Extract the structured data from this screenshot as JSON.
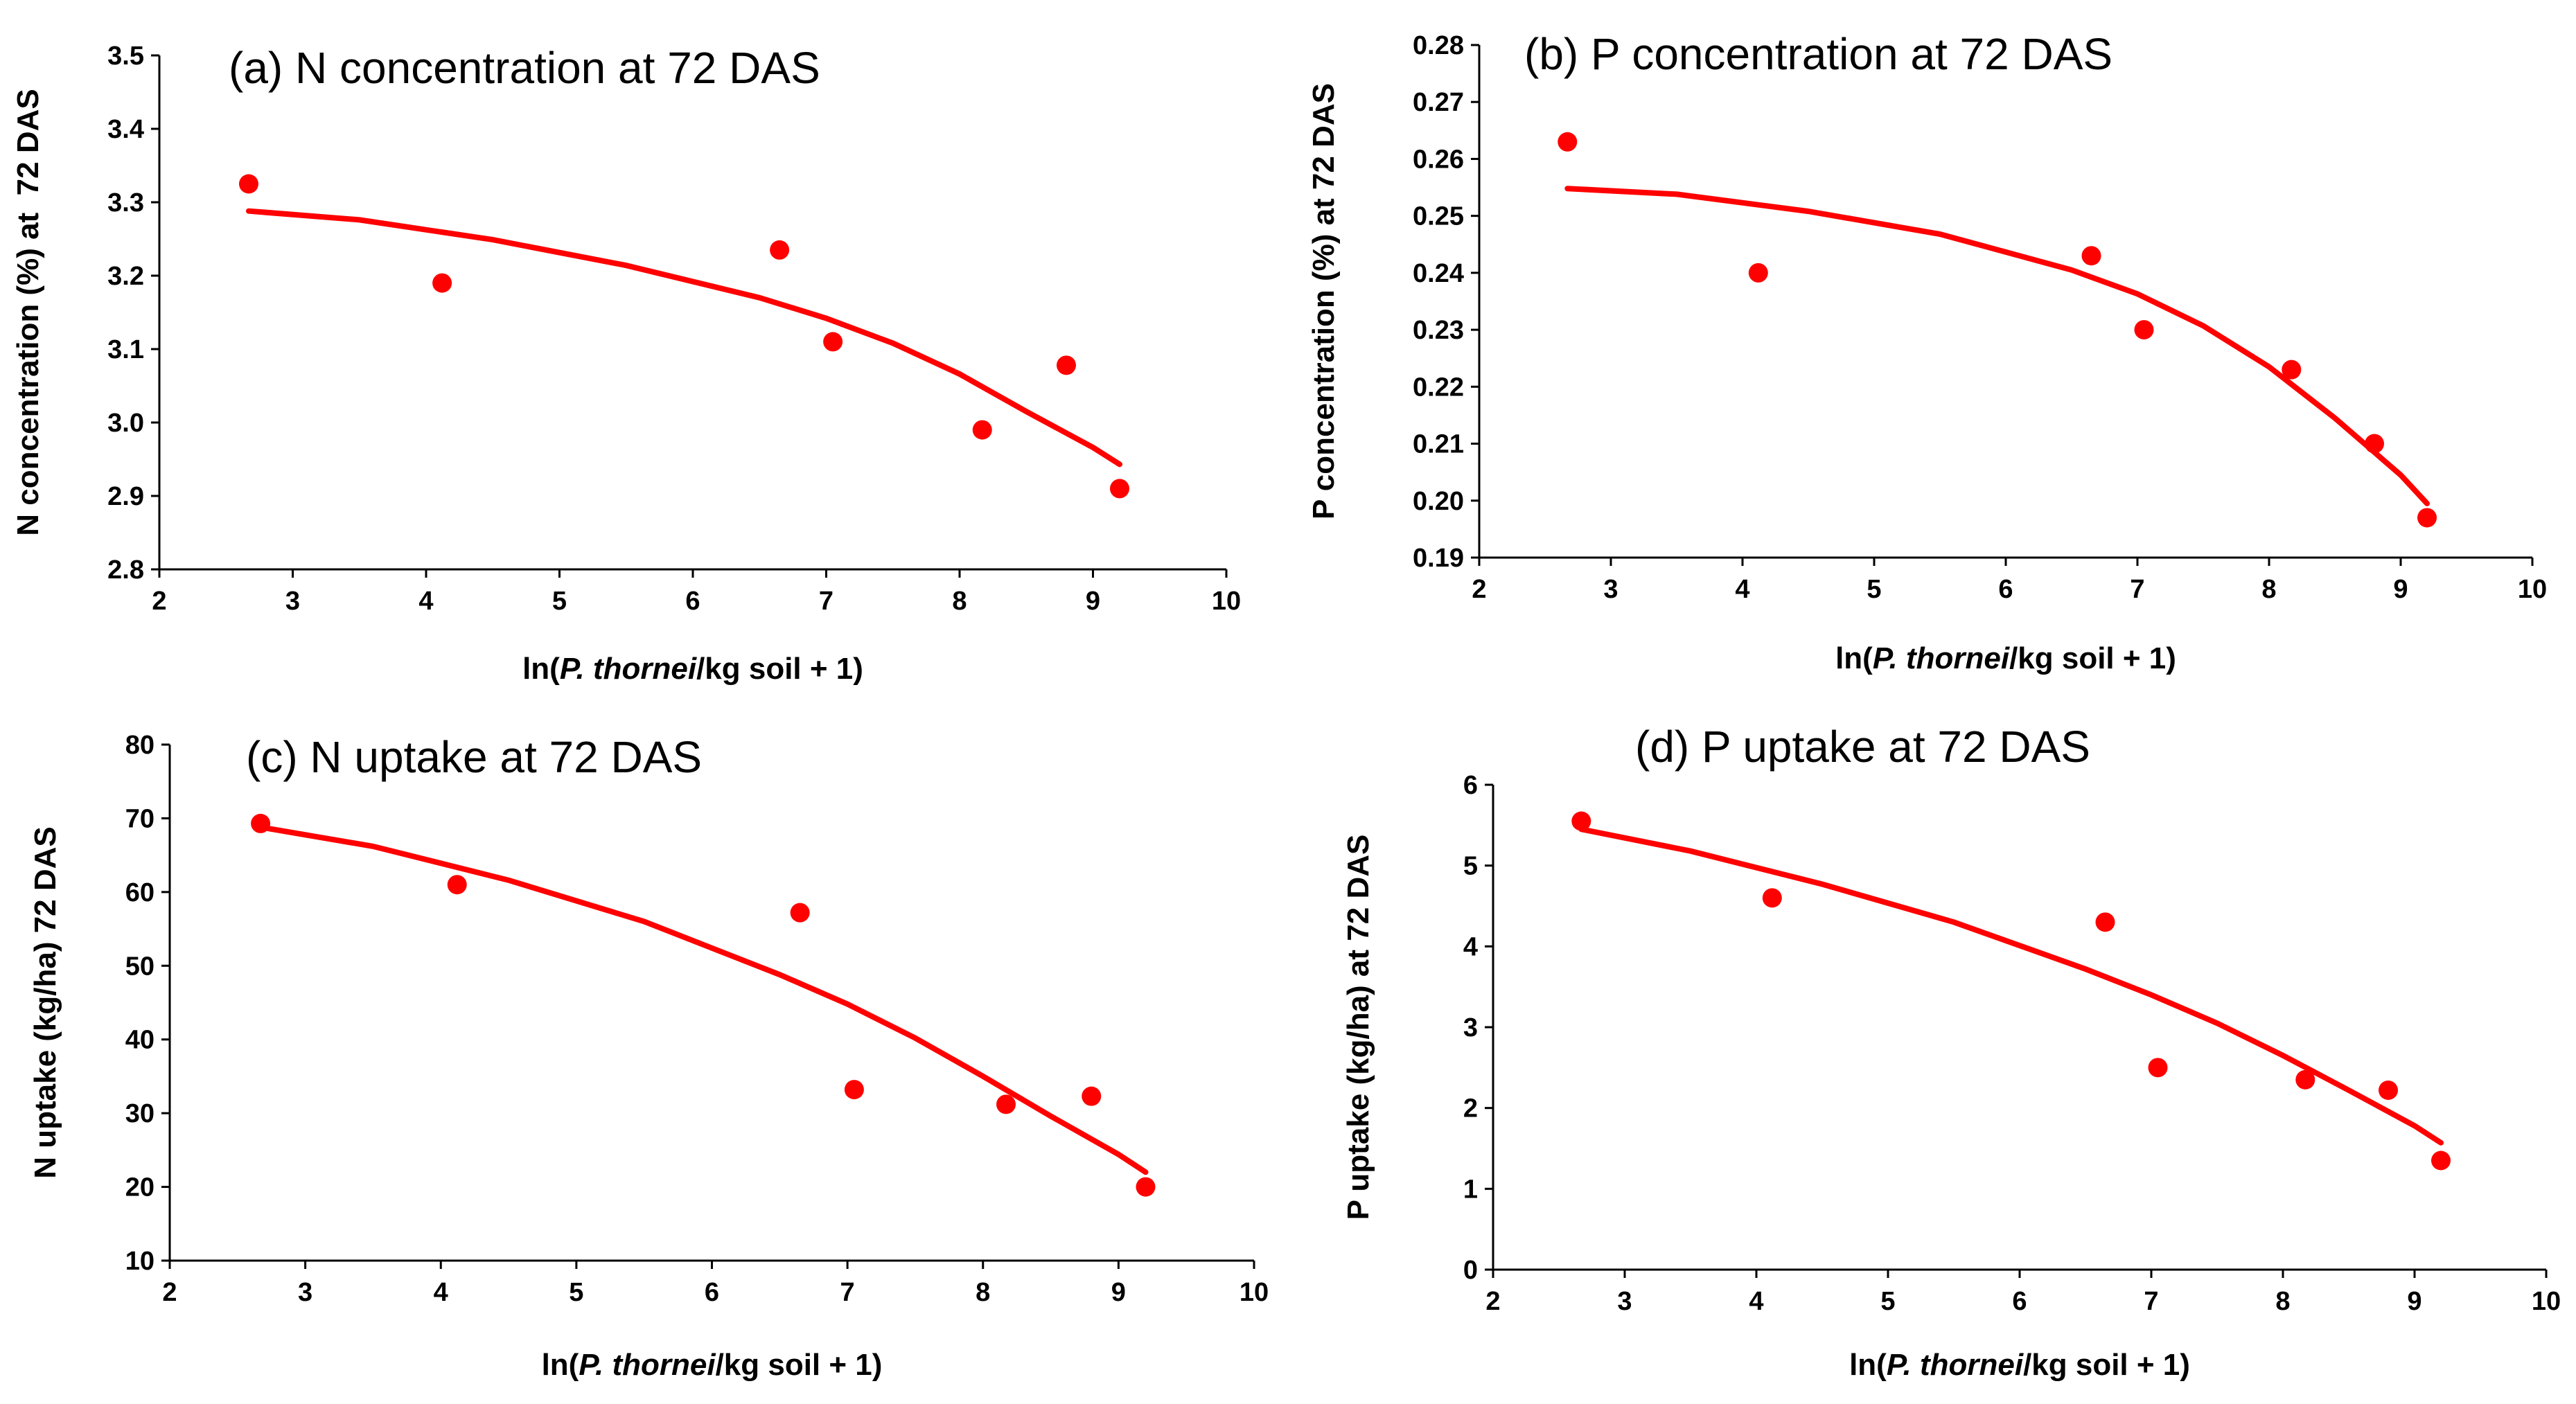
{
  "colors": {
    "marker": "#ff0000",
    "trendline": "#ff0000",
    "axis": "#000000"
  },
  "chart_data": [
    {
      "id": "a",
      "type": "scatter",
      "title": "(a) N concentration at 72 DAS",
      "xlabel": {
        "prefix": "ln(",
        "italic": "P. thornei",
        "suffix": "/kg soil + 1)"
      },
      "ylabel": "N concentration (%) at  72 DAS",
      "xlim": [
        2,
        10
      ],
      "ylim": [
        2.8,
        3.5
      ],
      "xticks": [
        2,
        3,
        4,
        5,
        6,
        7,
        8,
        9,
        10
      ],
      "yticks": [
        2.8,
        2.9,
        3.0,
        3.1,
        3.2,
        3.3,
        3.4,
        3.5
      ],
      "ytick_decimals": 1,
      "points": [
        {
          "x": 2.67,
          "y": 3.325
        },
        {
          "x": 4.12,
          "y": 3.19
        },
        {
          "x": 6.65,
          "y": 3.235
        },
        {
          "x": 7.05,
          "y": 3.11
        },
        {
          "x": 8.17,
          "y": 2.99
        },
        {
          "x": 8.8,
          "y": 3.078
        },
        {
          "x": 9.2,
          "y": 2.91
        }
      ],
      "trendline": [
        {
          "x": 2.67,
          "y": 3.288
        },
        {
          "x": 3.5,
          "y": 3.276
        },
        {
          "x": 4.5,
          "y": 3.249
        },
        {
          "x": 5.5,
          "y": 3.214
        },
        {
          "x": 6.5,
          "y": 3.17
        },
        {
          "x": 7.0,
          "y": 3.142
        },
        {
          "x": 7.5,
          "y": 3.108
        },
        {
          "x": 8.0,
          "y": 3.066
        },
        {
          "x": 8.5,
          "y": 3.015
        },
        {
          "x": 9.0,
          "y": 2.966
        },
        {
          "x": 9.2,
          "y": 2.943
        }
      ]
    },
    {
      "id": "b",
      "type": "scatter",
      "title": "(b) P concentration at 72 DAS",
      "xlabel": {
        "prefix": "ln(",
        "italic": "P. thornei",
        "suffix": "/kg soil + 1)"
      },
      "ylabel": "P concentration (%) at 72 DAS",
      "xlim": [
        2,
        10
      ],
      "ylim": [
        0.19,
        0.28
      ],
      "xticks": [
        2,
        3,
        4,
        5,
        6,
        7,
        8,
        9,
        10
      ],
      "yticks": [
        0.19,
        0.2,
        0.21,
        0.22,
        0.23,
        0.24,
        0.25,
        0.26,
        0.27,
        0.28
      ],
      "ytick_decimals": 2,
      "points": [
        {
          "x": 2.67,
          "y": 0.263
        },
        {
          "x": 4.12,
          "y": 0.24
        },
        {
          "x": 6.65,
          "y": 0.243
        },
        {
          "x": 7.05,
          "y": 0.23
        },
        {
          "x": 8.17,
          "y": 0.223
        },
        {
          "x": 8.8,
          "y": 0.21
        },
        {
          "x": 9.2,
          "y": 0.197
        }
      ],
      "trendline": [
        {
          "x": 2.67,
          "y": 0.2548
        },
        {
          "x": 3.5,
          "y": 0.2538
        },
        {
          "x": 4.5,
          "y": 0.2508
        },
        {
          "x": 5.5,
          "y": 0.2468
        },
        {
          "x": 6.5,
          "y": 0.2405
        },
        {
          "x": 7.0,
          "y": 0.2363
        },
        {
          "x": 7.5,
          "y": 0.2307
        },
        {
          "x": 8.0,
          "y": 0.2235
        },
        {
          "x": 8.5,
          "y": 0.2145
        },
        {
          "x": 9.0,
          "y": 0.2045
        },
        {
          "x": 9.2,
          "y": 0.1995
        }
      ]
    },
    {
      "id": "c",
      "type": "scatter",
      "title": "(c) N uptake at 72 DAS",
      "xlabel": {
        "prefix": "ln(",
        "italic": "P. thornei",
        "suffix": "/kg soil + 1)"
      },
      "ylabel": "N uptake (kg/ha) 72 DAS",
      "xlim": [
        2,
        10
      ],
      "ylim": [
        10,
        80
      ],
      "xticks": [
        2,
        3,
        4,
        5,
        6,
        7,
        8,
        9,
        10
      ],
      "yticks": [
        10,
        20,
        30,
        40,
        50,
        60,
        70,
        80
      ],
      "ytick_decimals": 0,
      "points": [
        {
          "x": 2.67,
          "y": 69.3
        },
        {
          "x": 4.12,
          "y": 61.0
        },
        {
          "x": 6.65,
          "y": 57.2
        },
        {
          "x": 7.05,
          "y": 33.2
        },
        {
          "x": 8.17,
          "y": 31.2
        },
        {
          "x": 8.8,
          "y": 32.3
        },
        {
          "x": 9.2,
          "y": 20.0
        }
      ],
      "trendline": [
        {
          "x": 2.67,
          "y": 68.8
        },
        {
          "x": 3.5,
          "y": 66.2
        },
        {
          "x": 4.5,
          "y": 61.6
        },
        {
          "x": 5.5,
          "y": 56.0
        },
        {
          "x": 6.5,
          "y": 48.8
        },
        {
          "x": 7.0,
          "y": 44.8
        },
        {
          "x": 7.5,
          "y": 40.2
        },
        {
          "x": 8.0,
          "y": 35.0
        },
        {
          "x": 8.5,
          "y": 29.6
        },
        {
          "x": 9.0,
          "y": 24.4
        },
        {
          "x": 9.2,
          "y": 22.0
        }
      ]
    },
    {
      "id": "d",
      "type": "scatter",
      "title": "(d) P uptake at 72 DAS",
      "xlabel": {
        "prefix": "ln(",
        "italic": "P. thornei",
        "suffix": "/kg soil + 1)"
      },
      "ylabel": "P uptake (kg/ha) at 72 DAS",
      "xlim": [
        2,
        10
      ],
      "ylim": [
        0,
        6
      ],
      "xticks": [
        2,
        3,
        4,
        5,
        6,
        7,
        8,
        9,
        10
      ],
      "yticks": [
        0,
        1,
        2,
        3,
        4,
        5,
        6
      ],
      "ytick_decimals": 0,
      "points": [
        {
          "x": 2.67,
          "y": 5.55
        },
        {
          "x": 4.12,
          "y": 4.6
        },
        {
          "x": 6.65,
          "y": 4.3
        },
        {
          "x": 7.05,
          "y": 2.5
        },
        {
          "x": 8.17,
          "y": 2.35
        },
        {
          "x": 8.8,
          "y": 2.22
        },
        {
          "x": 9.2,
          "y": 1.35
        }
      ],
      "trendline": [
        {
          "x": 2.67,
          "y": 5.45
        },
        {
          "x": 3.5,
          "y": 5.18
        },
        {
          "x": 4.5,
          "y": 4.77
        },
        {
          "x": 5.5,
          "y": 4.3
        },
        {
          "x": 6.5,
          "y": 3.72
        },
        {
          "x": 7.0,
          "y": 3.4
        },
        {
          "x": 7.5,
          "y": 3.05
        },
        {
          "x": 8.0,
          "y": 2.65
        },
        {
          "x": 8.5,
          "y": 2.22
        },
        {
          "x": 9.0,
          "y": 1.78
        },
        {
          "x": 9.2,
          "y": 1.57
        }
      ]
    }
  ]
}
